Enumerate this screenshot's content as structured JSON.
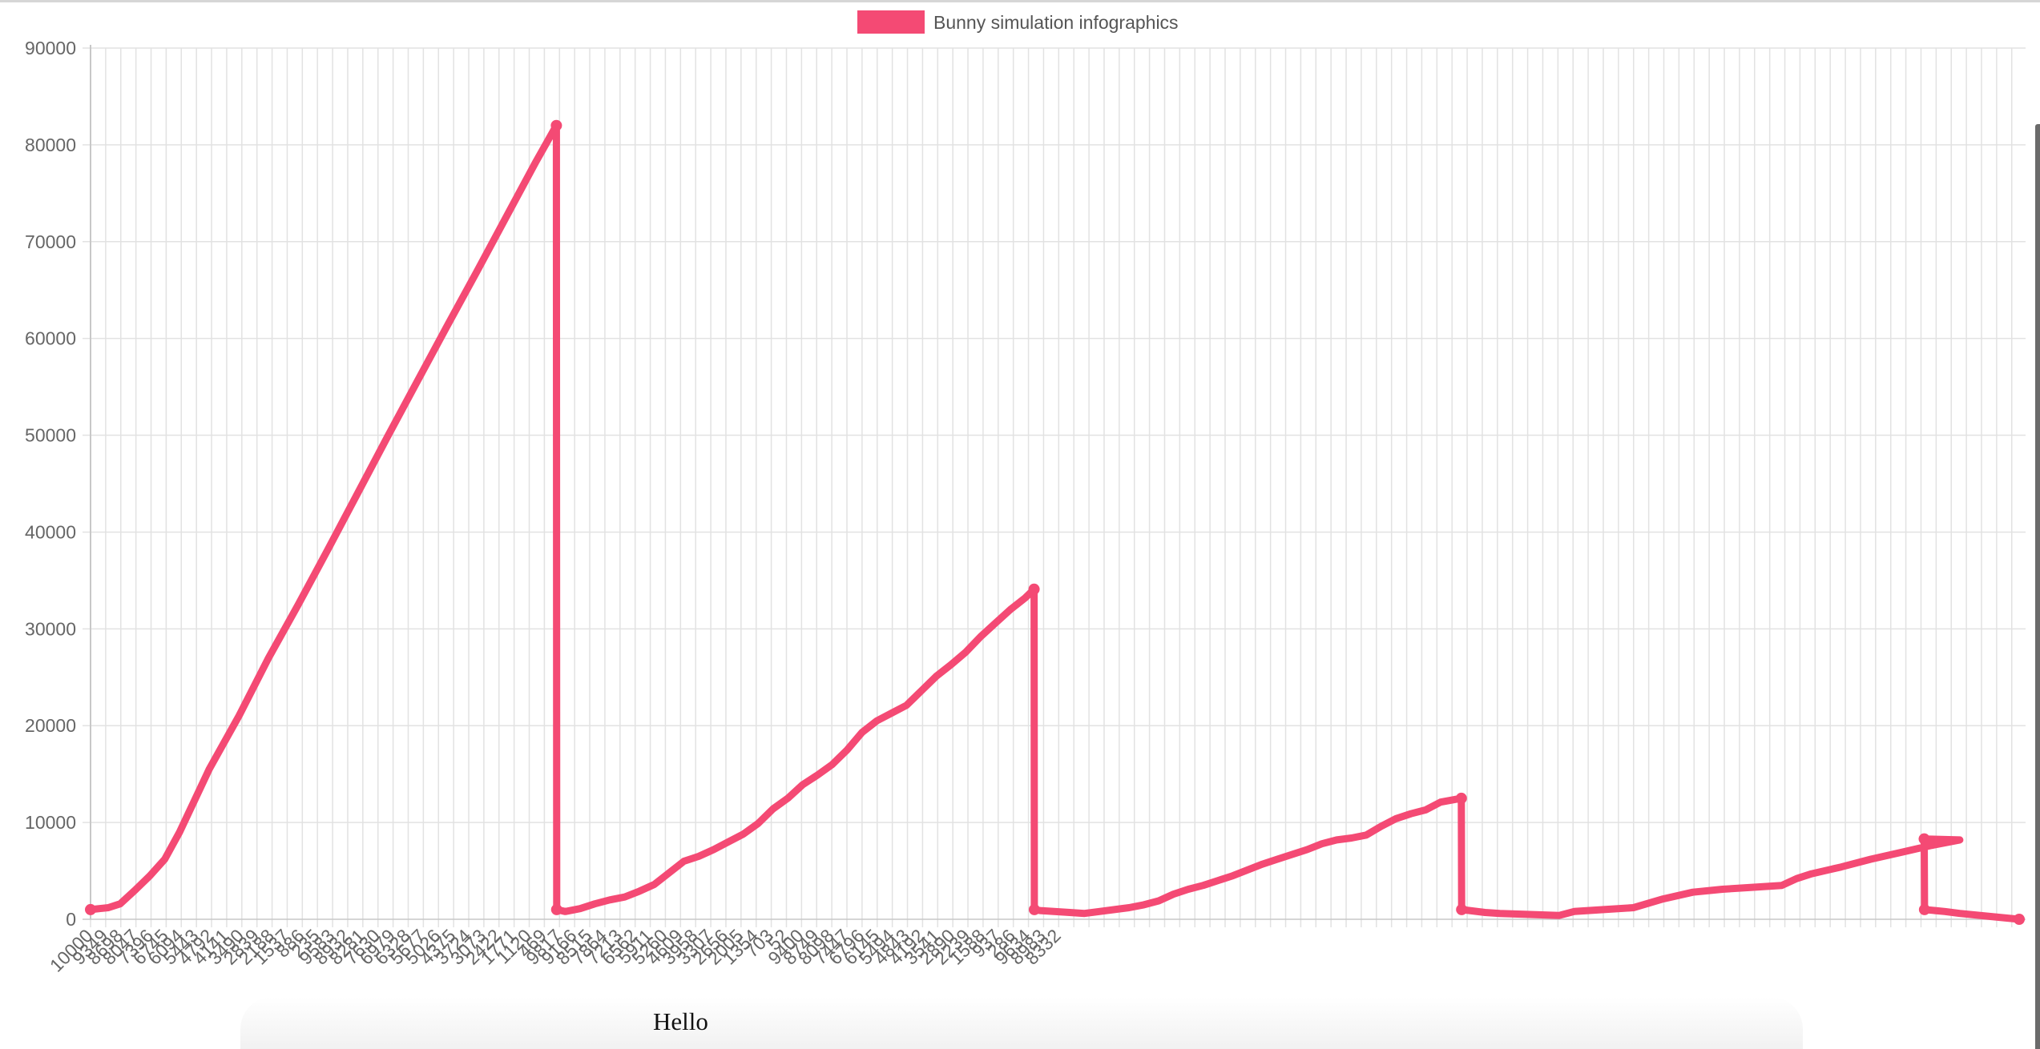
{
  "footer_text": "Hello",
  "chart_data": {
    "type": "line",
    "legend": {
      "label": "Bunny simulation infographics",
      "position": "top"
    },
    "color": "#f44a74",
    "grid": true,
    "ylim": [
      0,
      90000
    ],
    "y_ticks": [
      "90000",
      "80000",
      "70000",
      "60000",
      "50000",
      "40000",
      "30000",
      "20000",
      "10000",
      "0"
    ],
    "x_tick_labels": [
      "10000",
      "9349",
      "8698",
      "8047",
      "7396",
      "6745",
      "6094",
      "5443",
      "4792",
      "4141",
      "3490",
      "2839",
      "2188",
      "1537",
      "886",
      "235",
      "9583",
      "8932",
      "8281",
      "7630",
      "6979",
      "6328",
      "5677",
      "5026",
      "4375",
      "3724",
      "3073",
      "2422",
      "1771",
      "1120",
      "469",
      "9817",
      "9166",
      "8515",
      "7864",
      "7213",
      "6562",
      "5911",
      "5260",
      "4609",
      "3958",
      "3307",
      "2656",
      "2005",
      "1354",
      "703",
      "52",
      "9400",
      "8749",
      "8098",
      "7447",
      "6796",
      "6145",
      "5494",
      "4843",
      "4192",
      "3541",
      "2890",
      "2239",
      "1588",
      "937",
      "286",
      "9634",
      "8983",
      "8332"
    ],
    "series": [
      {
        "name": "Bunny simulation infographics",
        "points": [
          [
            0,
            1000
          ],
          [
            0.6,
            1200
          ],
          [
            1,
            1600
          ],
          [
            1.5,
            3000
          ],
          [
            2,
            4500
          ],
          [
            2.5,
            6200
          ],
          [
            3,
            9000
          ],
          [
            4,
            15500
          ],
          [
            5,
            21000
          ],
          [
            6,
            27000
          ],
          [
            7,
            32500
          ],
          [
            8,
            38200
          ],
          [
            9,
            44000
          ],
          [
            10,
            49800
          ],
          [
            11,
            55500
          ],
          [
            12,
            61200
          ],
          [
            13,
            66800
          ],
          [
            14,
            72500
          ],
          [
            15,
            78200
          ],
          [
            15.7,
            82000
          ],
          [
            15.71,
            1000
          ],
          [
            16,
            800
          ],
          [
            16.5,
            1100
          ],
          [
            17,
            1600
          ],
          [
            17.5,
            2000
          ],
          [
            18,
            2300
          ],
          [
            18.5,
            2900
          ],
          [
            19,
            3600
          ],
          [
            19.5,
            4800
          ],
          [
            20,
            6000
          ],
          [
            20.5,
            6500
          ],
          [
            21,
            7200
          ],
          [
            21.5,
            8000
          ],
          [
            22,
            8800
          ],
          [
            22.5,
            9900
          ],
          [
            23,
            11400
          ],
          [
            23.5,
            12500
          ],
          [
            24,
            13900
          ],
          [
            24.5,
            14900
          ],
          [
            25,
            16000
          ],
          [
            25.5,
            17500
          ],
          [
            26,
            19300
          ],
          [
            26.5,
            20500
          ],
          [
            27,
            21300
          ],
          [
            27.5,
            22100
          ],
          [
            28,
            23600
          ],
          [
            28.5,
            25100
          ],
          [
            29,
            26300
          ],
          [
            29.5,
            27600
          ],
          [
            30,
            29200
          ],
          [
            30.5,
            30600
          ],
          [
            31,
            32000
          ],
          [
            31.5,
            33200
          ],
          [
            31.8,
            34100
          ],
          [
            31.81,
            1000
          ],
          [
            32,
            900
          ],
          [
            33,
            700
          ],
          [
            33.5,
            600
          ],
          [
            34,
            800
          ],
          [
            35,
            1200
          ],
          [
            35.5,
            1500
          ],
          [
            36,
            1900
          ],
          [
            36.5,
            2600
          ],
          [
            37,
            3100
          ],
          [
            37.5,
            3500
          ],
          [
            38,
            4000
          ],
          [
            38.5,
            4500
          ],
          [
            39,
            5100
          ],
          [
            39.5,
            5700
          ],
          [
            40,
            6200
          ],
          [
            40.5,
            6700
          ],
          [
            41,
            7200
          ],
          [
            41.5,
            7800
          ],
          [
            42,
            8200
          ],
          [
            42.5,
            8400
          ],
          [
            43,
            8700
          ],
          [
            43.5,
            9600
          ],
          [
            44,
            10400
          ],
          [
            44.5,
            10900
          ],
          [
            45,
            11300
          ],
          [
            45.5,
            12100
          ],
          [
            46.2,
            12500
          ],
          [
            46.21,
            1000
          ],
          [
            47,
            700
          ],
          [
            47.5,
            600
          ],
          [
            48,
            550
          ],
          [
            48.5,
            500
          ],
          [
            49,
            450
          ],
          [
            49.5,
            400
          ],
          [
            50,
            800
          ],
          [
            51,
            1000
          ],
          [
            52,
            1200
          ],
          [
            53,
            2100
          ],
          [
            54,
            2800
          ],
          [
            55,
            3100
          ],
          [
            56,
            3300
          ],
          [
            57,
            3500
          ],
          [
            57.5,
            4200
          ],
          [
            58,
            4700
          ],
          [
            59,
            5400
          ],
          [
            60,
            6200
          ],
          [
            61,
            6900
          ],
          [
            62,
            7600
          ],
          [
            63,
            8200
          ],
          [
            61.8,
            8300
          ],
          [
            61.81,
            1000
          ],
          [
            62.5,
            800
          ],
          [
            63,
            600
          ],
          [
            64,
            300
          ],
          [
            65,
            0
          ]
        ]
      }
    ]
  }
}
